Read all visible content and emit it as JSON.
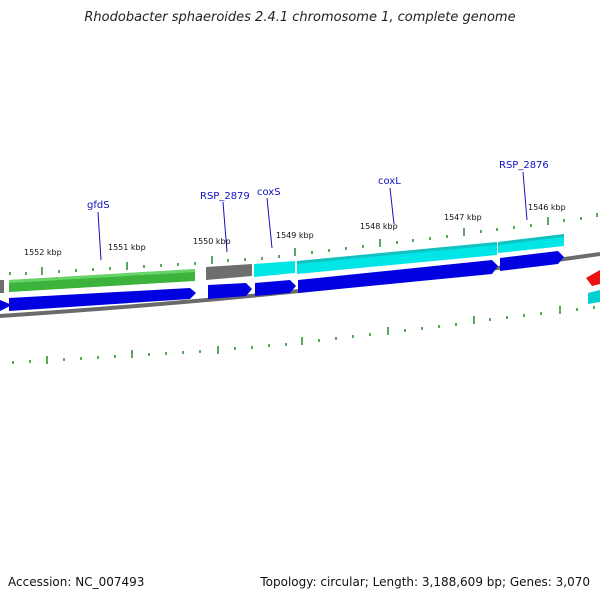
{
  "header": {
    "title": "Rhodobacter sphaeroides 2.4.1 chromosome 1, complete genome"
  },
  "footer": {
    "accession": "Accession: NC_007493",
    "summary": "Topology: circular; Length: 3,188,609 bp; Genes: 3,070"
  },
  "genome_map": {
    "scale_labels": [
      "1552 kbp",
      "1551 kbp",
      "1550 kbp",
      "1549 kbp",
      "1548 kbp",
      "1547 kbp",
      "1546 kbp"
    ],
    "gene_labels": [
      "gfdS",
      "RSP_2879",
      "coxS",
      "coxL",
      "RSP_2876"
    ],
    "colors": {
      "cds_blue": "#0000e0",
      "gene_green": "#3cb43c",
      "gene_gray": "#6e6e6e",
      "gene_cyan": "#00e6e6",
      "tick_green": "#228b22",
      "backbone_gray": "#808080",
      "label_blue": "#1010c0",
      "red_feature": "#ee1111"
    }
  }
}
